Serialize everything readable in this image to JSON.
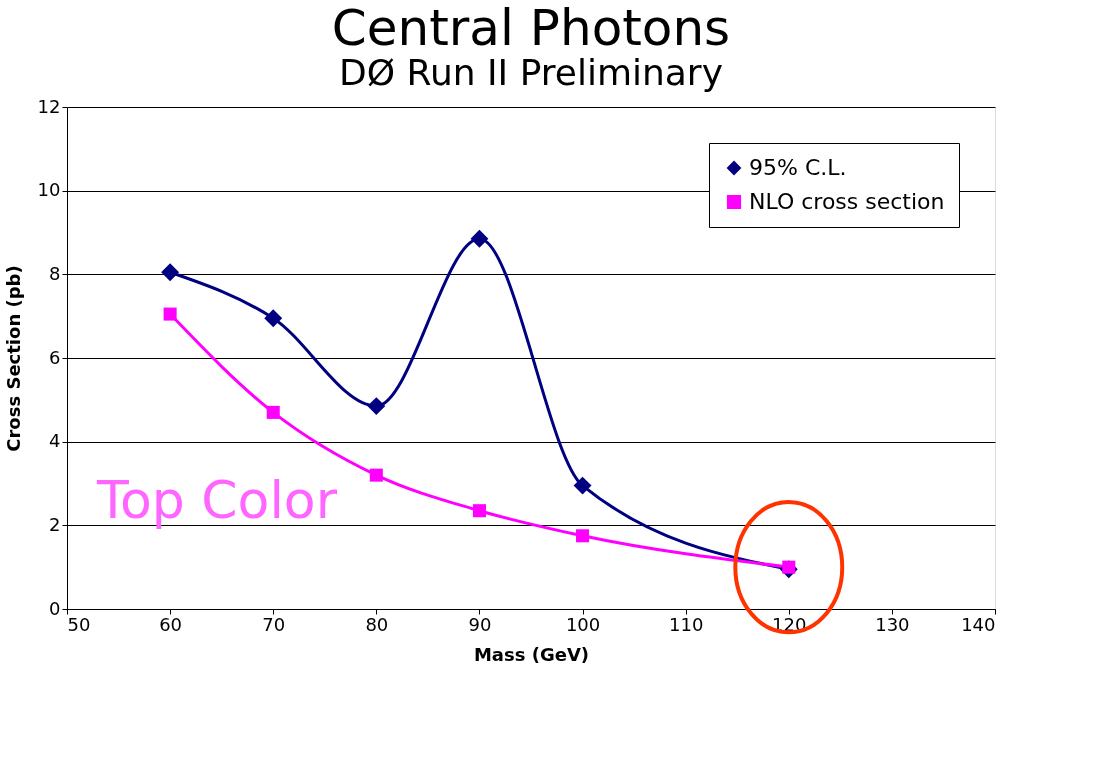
{
  "chart_data": {
    "type": "line",
    "title": "Central Photons",
    "subtitle": "DØ Run II Preliminary",
    "xlabel": "Mass (GeV)",
    "ylabel": "Cross Section  (pb)",
    "x": [
      60,
      70,
      80,
      90,
      100,
      120
    ],
    "series": [
      {
        "name": "95% C.L.",
        "color": "#000080",
        "marker": "diamond",
        "values": [
          8.05,
          6.95,
          4.85,
          8.85,
          2.95,
          0.95
        ]
      },
      {
        "name": "NLO cross section",
        "color": "#ff00ff",
        "marker": "square",
        "values": [
          7.05,
          4.7,
          3.2,
          2.35,
          1.75,
          1.0
        ]
      }
    ],
    "xlim": [
      50,
      140
    ],
    "xticks": [
      50,
      60,
      70,
      80,
      90,
      100,
      110,
      120,
      130,
      140
    ],
    "ylim": [
      0,
      12
    ],
    "yticks": [
      0,
      2,
      4,
      6,
      8,
      10,
      12
    ],
    "grid": "y",
    "legend": "top right",
    "line_style": "solid",
    "annotations": [
      "Top Color"
    ]
  }
}
